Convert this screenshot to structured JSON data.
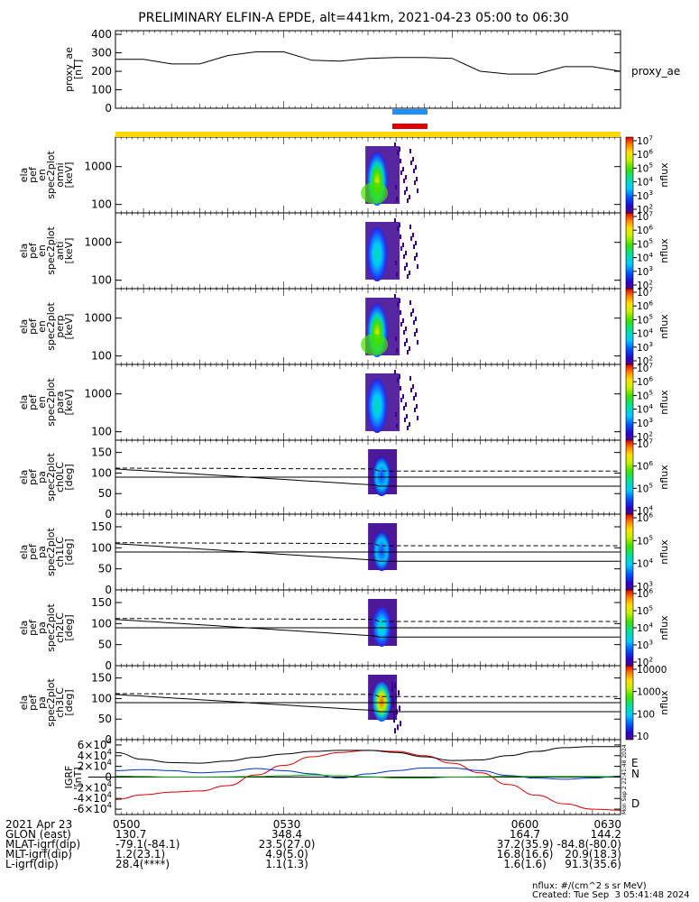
{
  "title": "PRELIMINARY ELFIN-A EPDE, alt=441km, 2021-04-23 05:00 to 06:30",
  "colors": {
    "bar_blue": "#1e90ff",
    "bar_red": "#e00000",
    "bar_yellow": "#ffd700",
    "geo_D": "#e00000",
    "geo_N": "#0033cc",
    "geo_E": "#00a000"
  },
  "chart_data": [
    {
      "id": "ae",
      "type": "line",
      "ylabel": "proxy_ae [nT]",
      "ylim": [
        0,
        420
      ],
      "yticks": [
        "0",
        "100",
        "200",
        "300",
        "400"
      ],
      "legend": "proxy_ae",
      "x": [
        "05:00",
        "05:05",
        "05:10",
        "05:15",
        "05:20",
        "05:25",
        "05:30",
        "05:35",
        "05:40",
        "05:45",
        "05:50",
        "05:55",
        "06:00",
        "06:05",
        "06:10",
        "06:15",
        "06:20",
        "06:25",
        "06:30"
      ],
      "values": [
        265,
        265,
        240,
        240,
        285,
        305,
        305,
        260,
        255,
        270,
        275,
        275,
        270,
        200,
        185,
        185,
        225,
        225,
        200
      ]
    },
    {
      "id": "omni",
      "type": "heatmap",
      "ylabel": [
        "ela",
        "pef",
        "en",
        "spec2plot",
        "omni",
        "[keV]"
      ],
      "yscale": "log",
      "ylim": [
        60,
        6000
      ],
      "yticks": [
        "100",
        "1000"
      ],
      "cbar": {
        "label": "nflux",
        "scale": "log",
        "ticks": [
          "10^2",
          "10^3",
          "10^4",
          "10^5",
          "10^6",
          "10^7"
        ]
      }
    },
    {
      "id": "anti",
      "type": "heatmap",
      "ylabel": [
        "ela",
        "pef",
        "en",
        "spec2plot",
        "anti",
        "[keV]"
      ],
      "yscale": "log",
      "ylim": [
        60,
        6000
      ],
      "yticks": [
        "100",
        "1000"
      ],
      "cbar": {
        "label": "nflux",
        "scale": "log",
        "ticks": [
          "10^2",
          "10^3",
          "10^4",
          "10^5",
          "10^6",
          "10^7"
        ]
      }
    },
    {
      "id": "perp",
      "type": "heatmap",
      "ylabel": [
        "ela",
        "pef",
        "en",
        "spec2plot",
        "perp",
        "[keV]"
      ],
      "yscale": "log",
      "ylim": [
        60,
        6000
      ],
      "yticks": [
        "100",
        "1000"
      ],
      "cbar": {
        "label": "nflux",
        "scale": "log",
        "ticks": [
          "10^2",
          "10^3",
          "10^4",
          "10^5",
          "10^6",
          "10^7"
        ]
      }
    },
    {
      "id": "para",
      "type": "heatmap",
      "ylabel": [
        "ela",
        "pef",
        "en",
        "spec2plot",
        "para",
        "[keV]"
      ],
      "yscale": "log",
      "ylim": [
        60,
        6000
      ],
      "yticks": [
        "100",
        "1000"
      ],
      "cbar": {
        "label": "nflux",
        "scale": "log",
        "ticks": [
          "10^2",
          "10^3",
          "10^4",
          "10^5",
          "10^6",
          "10^7"
        ]
      }
    },
    {
      "id": "ch0",
      "type": "heatmap",
      "ylabel": [
        "ela",
        "pef",
        "pa",
        "spec2plot",
        "ch0LC",
        "[deg]"
      ],
      "ylim": [
        0,
        180
      ],
      "yticks": [
        "0",
        "50",
        "100",
        "150"
      ],
      "cbar": {
        "label": "nflux",
        "scale": "log",
        "ticks": [
          "10^4",
          "10^5",
          "10^6",
          "10^7"
        ]
      }
    },
    {
      "id": "ch1",
      "type": "heatmap",
      "ylabel": [
        "ela",
        "pef",
        "pa",
        "spec2plot",
        "ch1LC",
        "[deg]"
      ],
      "ylim": [
        0,
        180
      ],
      "yticks": [
        "0",
        "50",
        "100",
        "150"
      ],
      "cbar": {
        "label": "nflux",
        "scale": "log",
        "ticks": [
          "10^3",
          "10^4",
          "10^5",
          "10^6"
        ]
      }
    },
    {
      "id": "ch2",
      "type": "heatmap",
      "ylabel": [
        "ela",
        "pef",
        "pa",
        "spec2plot",
        "ch2LC",
        "[deg]"
      ],
      "ylim": [
        0,
        180
      ],
      "yticks": [
        "0",
        "50",
        "100",
        "150"
      ],
      "cbar": {
        "label": "nflux",
        "scale": "log",
        "ticks": [
          "10^2",
          "10^3",
          "10^4",
          "10^5",
          "10^6"
        ]
      }
    },
    {
      "id": "ch3",
      "type": "heatmap",
      "ylabel": [
        "ela",
        "pef",
        "pa",
        "spec2plot",
        "ch3LC",
        "[deg]"
      ],
      "ylim": [
        0,
        180
      ],
      "yticks": [
        "0",
        "50",
        "100",
        "150"
      ],
      "cbar": {
        "label": "nflux",
        "scale": "log",
        "ticks": [
          "10",
          "100",
          "1000",
          "10000"
        ]
      }
    },
    {
      "id": "igrf",
      "type": "line",
      "ylabel": "IGRF [nT]",
      "ylim": [
        -70000,
        70000
      ],
      "yticks": [
        "-6x10^4",
        "-4x10^4",
        "-2x10^4",
        "0",
        "2x10^4",
        "4x10^4",
        "6x10^4"
      ],
      "legend": [
        "E",
        "N",
        "D"
      ],
      "x": [
        "05:00",
        "05:05",
        "05:10",
        "05:15",
        "05:20",
        "05:25",
        "05:30",
        "05:35",
        "05:40",
        "05:45",
        "05:50",
        "05:55",
        "06:00",
        "06:05",
        "06:10",
        "06:15",
        "06:20",
        "06:25",
        "06:30"
      ],
      "series": [
        {
          "name": "D",
          "values": [
            -42000,
            -33000,
            -28000,
            -26000,
            -16000,
            4000,
            22000,
            38000,
            46000,
            50000,
            48000,
            40000,
            26000,
            8000,
            -14000,
            -34000,
            -50000,
            -60000,
            -62000
          ]
        },
        {
          "name": "N",
          "values": [
            12000,
            14000,
            12000,
            8000,
            10000,
            16000,
            12000,
            6000,
            -2000,
            6000,
            12000,
            17000,
            17000,
            12000,
            3000,
            -2000,
            -4000,
            -2000,
            2000
          ]
        },
        {
          "name": "E",
          "values": [
            2000,
            1000,
            0,
            0,
            500,
            1000,
            2500,
            4000,
            2500,
            500,
            -1500,
            -1500,
            0,
            500,
            1500,
            1000,
            1000,
            1000,
            500
          ]
        },
        {
          "name": "total",
          "values": [
            46000,
            33000,
            27000,
            26000,
            30000,
            37000,
            43000,
            48000,
            50000,
            50000,
            46000,
            38000,
            31000,
            32000,
            40000,
            48000,
            55000,
            57000,
            57000
          ]
        }
      ],
      "side_label": "Mon Sep  2 22:41:48 2024"
    }
  ],
  "footer": {
    "date": "2021 Apr 23",
    "times": [
      "0500",
      "0530",
      "0600",
      "0630"
    ],
    "rows": [
      {
        "label": "GLON (east)",
        "values": [
          "130.7",
          "348.4",
          "164.7",
          "144.2"
        ]
      },
      {
        "label": "MLAT-igrf(dip)",
        "values": [
          "-79.1(-84.1)",
          "23.5(27.0)",
          "37.2(35.9)",
          "-84.8(-80.0)"
        ]
      },
      {
        "label": "MLT-igrf(dip)",
        "values": [
          "1.2(23.1)",
          "4.9(5.0)",
          "16.8(16.6)",
          "20.9(18.3)"
        ]
      },
      {
        "label": "L-igrf(dip)",
        "values": [
          "28.4(****)",
          "1.1(1.3)",
          "1.6(1.6)",
          "91.3(35.6)"
        ]
      }
    ],
    "units_note": "nflux: #/(cm^2 s sr MeV)",
    "created": "Created: Tue Sep  3 05:41:48 2024"
  }
}
